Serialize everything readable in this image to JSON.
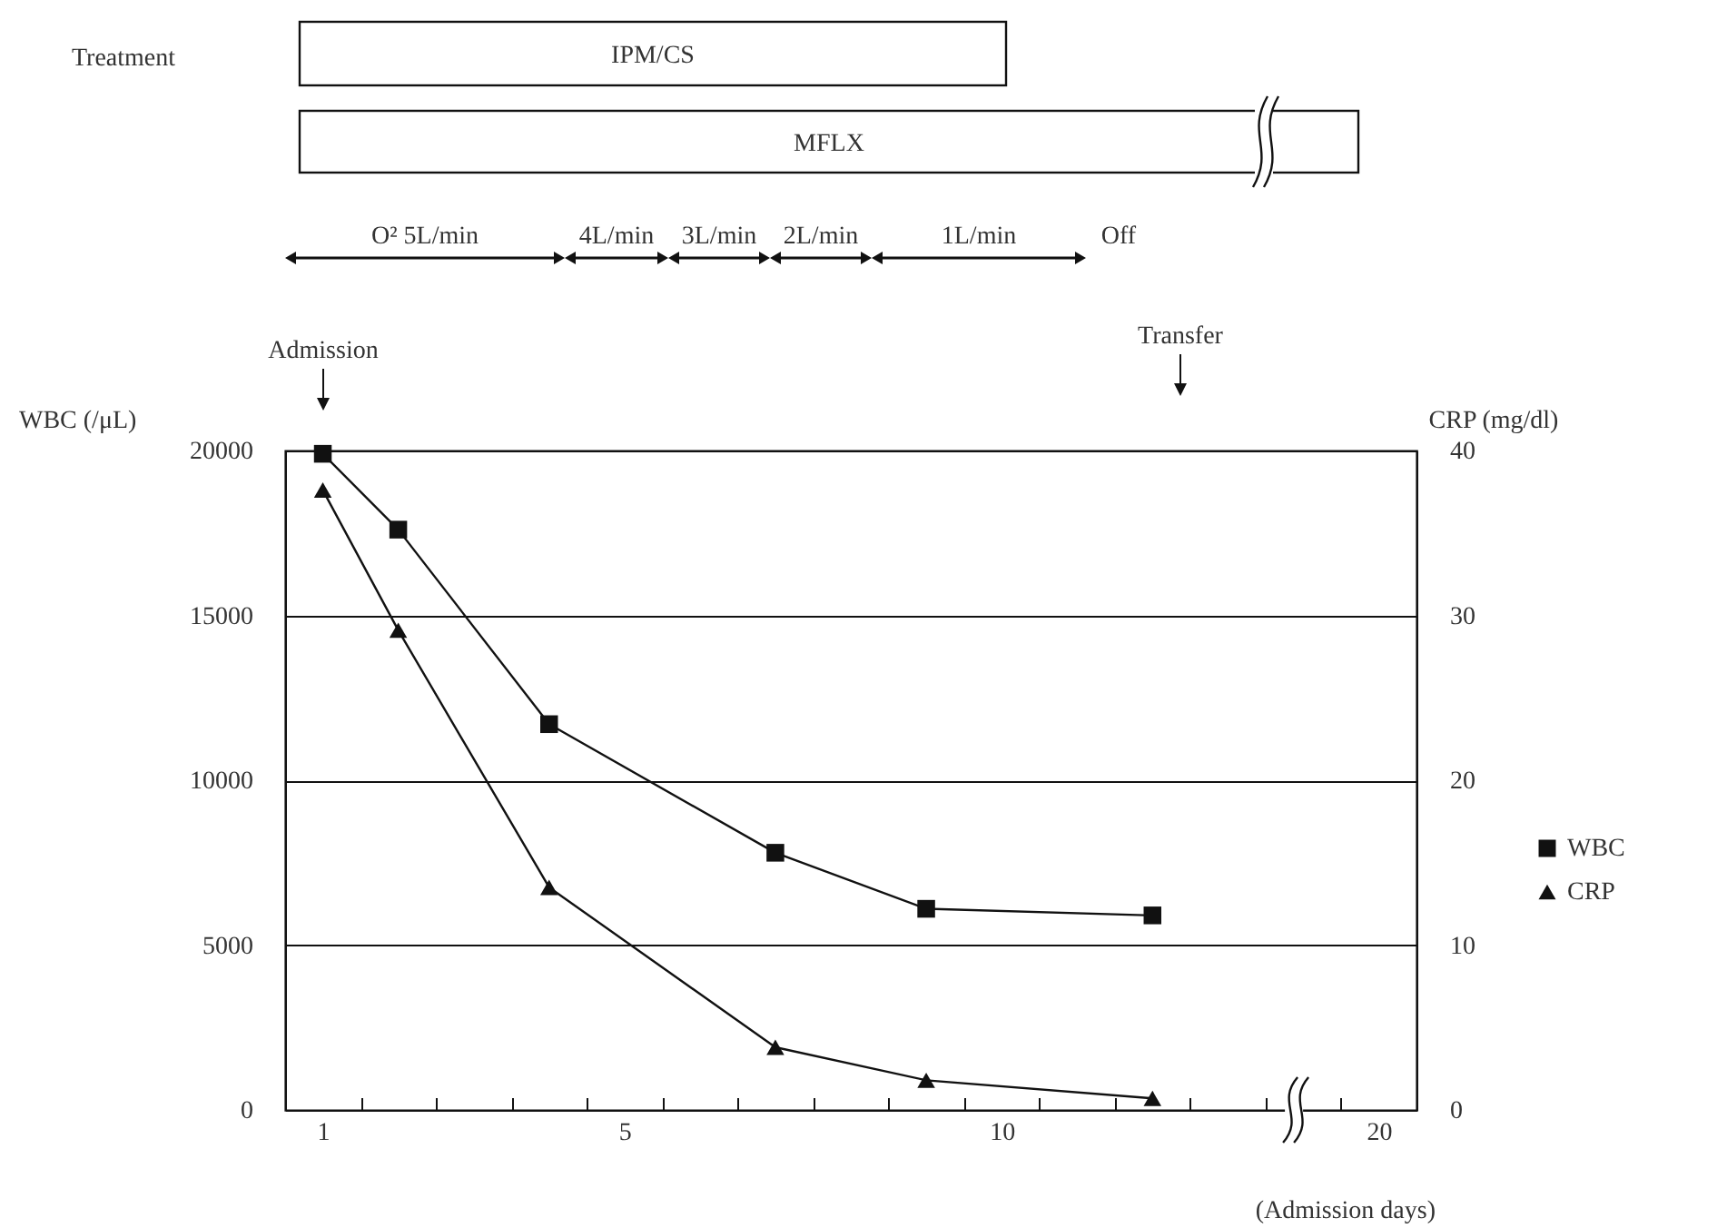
{
  "chart_data": {
    "type": "line",
    "categories": [
      "1",
      null,
      null,
      null,
      "5",
      null,
      null,
      null,
      null,
      "10",
      null,
      null,
      null,
      null,
      "20"
    ],
    "series": [
      {
        "name": "WBC",
        "color": "#111111",
        "marker": "square",
        "values": [
          19900,
          17600,
          null,
          11700,
          null,
          null,
          7800,
          null,
          6100,
          null,
          null,
          5900,
          null,
          null,
          null
        ]
      },
      {
        "name": "CRP",
        "color": "#111111",
        "marker": "triangle",
        "axis": "y2",
        "values": [
          37.6,
          29.1,
          null,
          13.5,
          null,
          null,
          3.8,
          null,
          1.8,
          null,
          null,
          0.7,
          null,
          null,
          null
        ]
      }
    ],
    "xlabel": "(Admission days)",
    "ylabel": "WBC (/μL)",
    "y2label": "CRP (mg/dl)",
    "ylim": [
      0,
      20000
    ],
    "yticks": [
      0,
      5000,
      10000,
      15000,
      20000
    ],
    "y2lim": [
      0,
      40
    ],
    "y2ticks": [
      0,
      10,
      20,
      30,
      40
    ],
    "grid": "y",
    "legend": "right",
    "line_style": "solid",
    "annotations": [
      "Treatment",
      "IPM/CS",
      "MFLX",
      "O² 5L/min",
      "4L/min",
      "3L/min",
      "2L/min",
      "1L/min",
      "Off",
      "Admission",
      "Transfer"
    ]
  }
}
